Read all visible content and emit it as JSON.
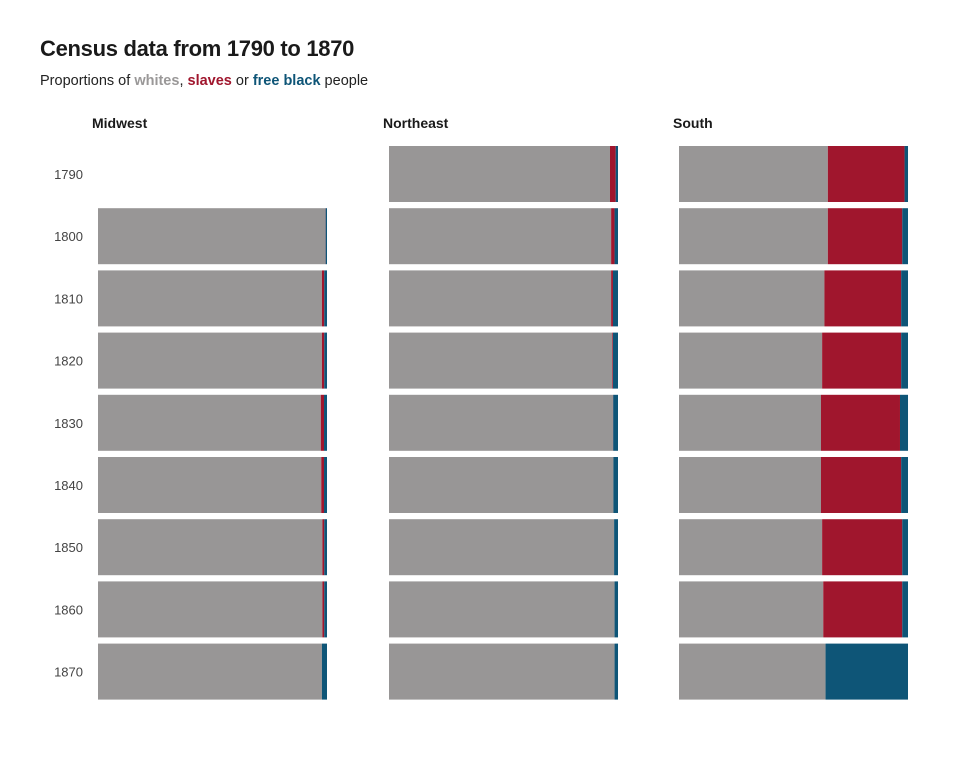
{
  "title": "Census data from 1790 to 1870",
  "subtitle": {
    "prefix": "Proportions of ",
    "whites": "whites",
    "comma": ", ",
    "slaves": "slaves",
    "or": " or ",
    "free_black": "free black",
    "suffix": " people"
  },
  "colors": {
    "whites": "#989696",
    "slaves": "#a0162d",
    "free_black": "#0e5577"
  },
  "chart_data": {
    "type": "bar",
    "stacked": "proportion",
    "orientation": "horizontal",
    "years": [
      "1790",
      "1800",
      "1810",
      "1820",
      "1830",
      "1840",
      "1850",
      "1860",
      "1870"
    ],
    "series_order": [
      "whites",
      "slaves",
      "free_black"
    ],
    "panels": [
      {
        "region": "Midwest",
        "values": [
          null,
          {
            "whites": 0.993,
            "slaves": 0.001,
            "free_black": 0.006
          },
          {
            "whites": 0.978,
            "slaves": 0.01,
            "free_black": 0.012
          },
          {
            "whites": 0.978,
            "slaves": 0.01,
            "free_black": 0.012
          },
          {
            "whites": 0.973,
            "slaves": 0.014,
            "free_black": 0.013
          },
          {
            "whites": 0.975,
            "slaves": 0.012,
            "free_black": 0.013
          },
          {
            "whites": 0.98,
            "slaves": 0.008,
            "free_black": 0.012
          },
          {
            "whites": 0.98,
            "slaves": 0.008,
            "free_black": 0.012
          },
          {
            "whites": 0.978,
            "slaves": 0.0,
            "free_black": 0.022
          }
        ]
      },
      {
        "region": "Northeast",
        "values": [
          {
            "whites": 0.965,
            "slaves": 0.025,
            "free_black": 0.01
          },
          {
            "whites": 0.97,
            "slaves": 0.015,
            "free_black": 0.015
          },
          {
            "whites": 0.97,
            "slaves": 0.008,
            "free_black": 0.022
          },
          {
            "whites": 0.975,
            "slaves": 0.003,
            "free_black": 0.022
          },
          {
            "whites": 0.978,
            "slaves": 0.001,
            "free_black": 0.021
          },
          {
            "whites": 0.98,
            "slaves": 0.0,
            "free_black": 0.02
          },
          {
            "whites": 0.983,
            "slaves": 0.0,
            "free_black": 0.017
          },
          {
            "whites": 0.985,
            "slaves": 0.0,
            "free_black": 0.015
          },
          {
            "whites": 0.985,
            "slaves": 0.0,
            "free_black": 0.015
          }
        ]
      },
      {
        "region": "South",
        "values": [
          {
            "whites": 0.65,
            "slaves": 0.335,
            "free_black": 0.015
          },
          {
            "whites": 0.65,
            "slaves": 0.325,
            "free_black": 0.025
          },
          {
            "whites": 0.635,
            "slaves": 0.335,
            "free_black": 0.03
          },
          {
            "whites": 0.625,
            "slaves": 0.345,
            "free_black": 0.03
          },
          {
            "whites": 0.62,
            "slaves": 0.345,
            "free_black": 0.035
          },
          {
            "whites": 0.62,
            "slaves": 0.35,
            "free_black": 0.03
          },
          {
            "whites": 0.625,
            "slaves": 0.35,
            "free_black": 0.025
          },
          {
            "whites": 0.63,
            "slaves": 0.345,
            "free_black": 0.025
          },
          {
            "whites": 0.64,
            "slaves": 0.0,
            "free_black": 0.36
          }
        ]
      }
    ],
    "xlim": [
      0,
      1
    ],
    "grid": false,
    "legend": "in subtitle"
  }
}
